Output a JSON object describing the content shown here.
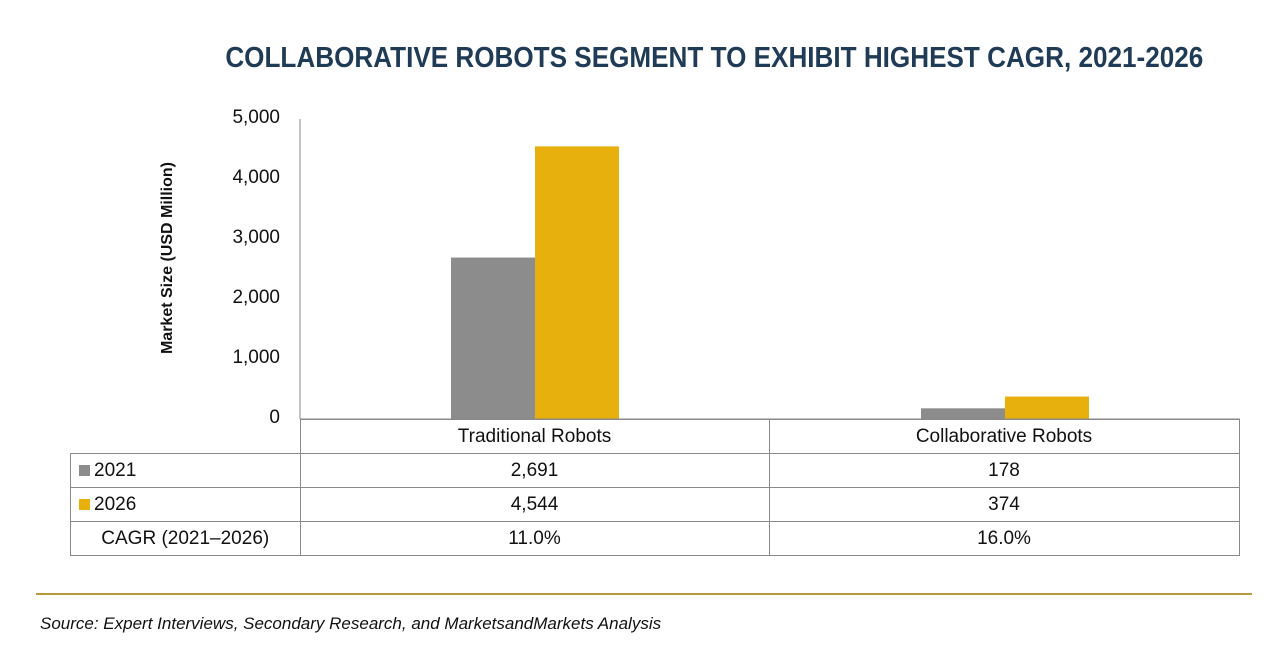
{
  "chart_data": {
    "type": "bar",
    "title": "COLLABORATIVE ROBOTS SEGMENT TO EXHIBIT HIGHEST CAGR, 2021-2026",
    "ylabel": "Market Size (USD Million)",
    "xlabel": "",
    "ylim": [
      0,
      5000
    ],
    "yticks": [
      "0",
      "1,000",
      "2,000",
      "3,000",
      "4,000",
      "5,000"
    ],
    "categories": [
      "Traditional Robots",
      "Collaborative Robots"
    ],
    "series": [
      {
        "name": "2021",
        "color": "#8c8c8c",
        "values": [
          2691,
          178
        ],
        "labels": [
          "2,691",
          "178"
        ]
      },
      {
        "name": "2026",
        "color": "#e8b00c",
        "values": [
          4544,
          374
        ],
        "labels": [
          "4,544",
          "374"
        ]
      }
    ],
    "cagr": {
      "label": "CAGR (2021–2026)",
      "values": [
        "11.0%",
        "16.0%"
      ]
    },
    "grid": false,
    "legend": "table"
  },
  "source": "Source: Expert Interviews, Secondary Research, and MarketsandMarkets Analysis"
}
